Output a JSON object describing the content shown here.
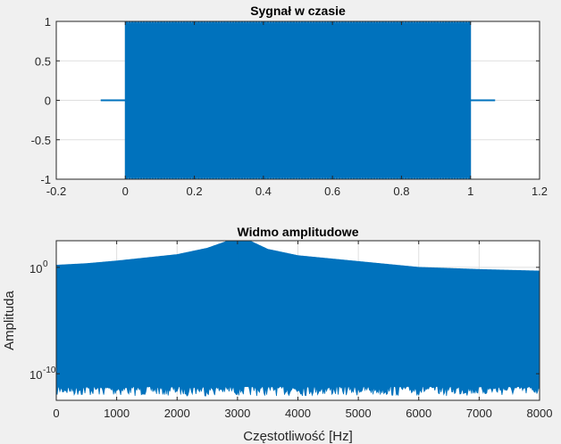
{
  "window": {
    "background": "#f0f0f0"
  },
  "chart_data": [
    {
      "type": "line",
      "title": "Sygnał w czasie",
      "xlabel": "",
      "ylabel": "",
      "xlim": [
        -0.2,
        1.2
      ],
      "ylim": [
        -1,
        1
      ],
      "xticks": [
        -0.2,
        0,
        0.2,
        0.4,
        0.6,
        0.8,
        1,
        1.2
      ],
      "xtick_labels": [
        "-0.2",
        "0",
        "0.2",
        "0.4",
        "0.6",
        "0.8",
        "1",
        "1.2"
      ],
      "yticks": [
        1,
        0.5,
        0,
        -0.5,
        -1
      ],
      "ytick_labels": [
        "1",
        "0.5",
        "0",
        "-0.5",
        "-1"
      ],
      "grid": true,
      "color": "#0072bd",
      "series": [
        {
          "description": "dense oscillating signal filling the band from -1 to 1 between t=0 and t=1, near zero outside",
          "x": [
            -0.07,
            0,
            0,
            1,
            1,
            1.07
          ],
          "y_upper": [
            0.005,
            0.005,
            1,
            1,
            0.005,
            0.005
          ],
          "y_lower": [
            -0.005,
            -0.005,
            -1,
            -1,
            -0.005,
            -0.005
          ]
        }
      ]
    },
    {
      "type": "line",
      "title": "Widmo amplitudowe",
      "xlabel": "Częstotliwość [Hz]",
      "ylabel": "Amplituda",
      "xlim": [
        0,
        8000
      ],
      "yscale": "log",
      "ylim_exp": [
        -12.5,
        2.5
      ],
      "xticks": [
        0,
        1000,
        2000,
        3000,
        4000,
        5000,
        6000,
        7000,
        8000
      ],
      "xtick_labels": [
        "0",
        "1000",
        "2000",
        "3000",
        "4000",
        "5000",
        "6000",
        "7000",
        "8000"
      ],
      "ytick_exp": [
        0,
        -10
      ],
      "ytick_bases": [
        "10",
        "10"
      ],
      "ytick_exponents": [
        "0",
        "-10"
      ],
      "grid": true,
      "color": "#0072bd",
      "envelope_upper": {
        "x": [
          0,
          500,
          1000,
          1500,
          2000,
          2500,
          2800,
          2950,
          3000,
          3030,
          3060,
          3100,
          3200,
          3500,
          4000,
          5000,
          6000,
          7000,
          8000
        ],
        "log10_y": [
          0.2,
          0.35,
          0.6,
          0.9,
          1.2,
          1.8,
          2.4,
          3.3,
          4.5,
          6.0,
          4.5,
          3.3,
          2.5,
          1.7,
          1.1,
          0.55,
          0.0,
          -0.2,
          -0.35
        ]
      },
      "noise_floor_log10": -11.2,
      "peak_frequency": 3030
    }
  ]
}
